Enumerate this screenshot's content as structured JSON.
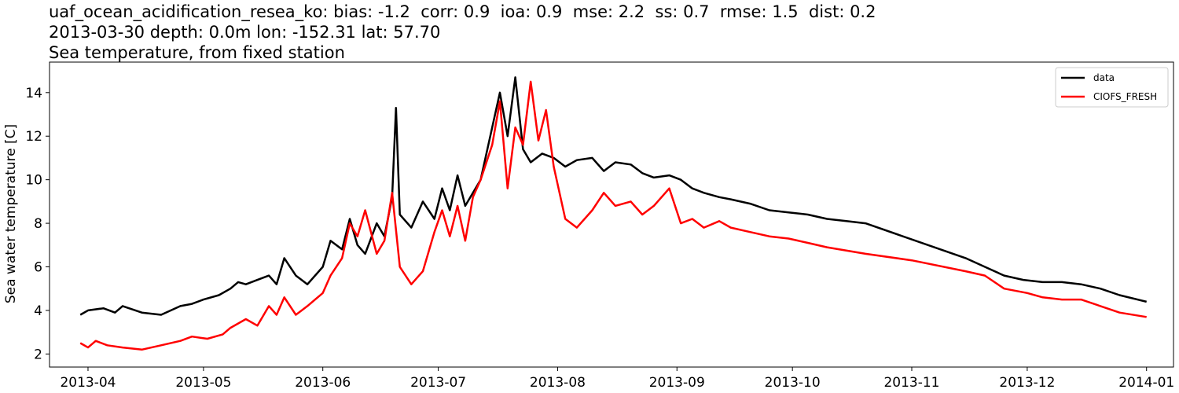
{
  "title_lines": [
    "uaf_ocean_acidification_resea_ko: bias: -1.2  corr: 0.9  ioa: 0.9  mse: 2.2  ss: 0.7  rmse: 1.5  dist: 0.2",
    "2013-03-30 depth: 0.0m lon: -152.31 lat: 57.70",
    "Sea temperature, from fixed station"
  ],
  "chart_data": {
    "type": "line",
    "title": "uaf_ocean_acidification_resea_ko: bias: -1.2  corr: 0.9  ioa: 0.9  mse: 2.2  ss: 0.7  rmse: 1.5  dist: 0.2 / 2013-03-30 depth: 0.0m lon: -152.31 lat: 57.70 / Sea temperature, from fixed station",
    "xlabel": "",
    "ylabel": "Sea water temperature [C]",
    "xlim": [
      "2013-03-22",
      "2014-01-08"
    ],
    "ylim": [
      1.4,
      15.4
    ],
    "x_ticks": [
      "2013-04",
      "2013-05",
      "2013-06",
      "2013-07",
      "2013-08",
      "2013-09",
      "2013-10",
      "2013-11",
      "2013-12",
      "2014-01"
    ],
    "x_tick_dates": [
      "2013-04-01",
      "2013-05-01",
      "2013-06-01",
      "2013-07-01",
      "2013-08-01",
      "2013-09-01",
      "2013-10-01",
      "2013-11-01",
      "2013-12-01",
      "2014-01-01"
    ],
    "y_ticks": [
      2,
      4,
      6,
      8,
      10,
      12,
      14
    ],
    "y_tick_labels": [
      "2",
      "4",
      "6",
      "8",
      "10",
      "12",
      "14"
    ],
    "grid": false,
    "legend": "top-right",
    "series": [
      {
        "name": "data",
        "color": "#000000",
        "x": [
          "2013-03-30",
          "2013-04-01",
          "2013-04-05",
          "2013-04-08",
          "2013-04-10",
          "2013-04-15",
          "2013-04-20",
          "2013-04-25",
          "2013-04-28",
          "2013-05-01",
          "2013-05-05",
          "2013-05-08",
          "2013-05-10",
          "2013-05-12",
          "2013-05-15",
          "2013-05-18",
          "2013-05-20",
          "2013-05-22",
          "2013-05-25",
          "2013-05-28",
          "2013-06-01",
          "2013-06-03",
          "2013-06-06",
          "2013-06-08",
          "2013-06-10",
          "2013-06-12",
          "2013-06-15",
          "2013-06-17",
          "2013-06-19",
          "2013-06-20",
          "2013-06-21",
          "2013-06-24",
          "2013-06-27",
          "2013-06-30",
          "2013-07-02",
          "2013-07-04",
          "2013-07-06",
          "2013-07-08",
          "2013-07-10",
          "2013-07-12",
          "2013-07-15",
          "2013-07-17",
          "2013-07-19",
          "2013-07-21",
          "2013-07-23",
          "2013-07-25",
          "2013-07-28",
          "2013-07-31",
          "2013-08-03",
          "2013-08-06",
          "2013-08-10",
          "2013-08-13",
          "2013-08-16",
          "2013-08-20",
          "2013-08-23",
          "2013-08-26",
          "2013-08-30",
          "2013-09-02",
          "2013-09-05",
          "2013-09-08",
          "2013-09-12",
          "2013-09-15",
          "2013-09-20",
          "2013-09-25",
          "2013-09-30",
          "2013-10-05",
          "2013-10-10",
          "2013-10-15",
          "2013-10-20",
          "2013-11-15",
          "2013-11-20",
          "2013-11-25",
          "2013-11-30",
          "2013-12-05",
          "2013-12-10",
          "2013-12-15",
          "2013-12-20",
          "2013-12-25",
          "2014-01-01"
        ],
        "y": [
          3.8,
          4.0,
          4.1,
          3.9,
          4.2,
          3.9,
          3.8,
          4.2,
          4.3,
          4.5,
          4.7,
          5.0,
          5.3,
          5.2,
          5.4,
          5.6,
          5.2,
          6.4,
          5.6,
          5.2,
          6.0,
          7.2,
          6.8,
          8.2,
          7.0,
          6.6,
          8.0,
          7.4,
          9.2,
          13.3,
          8.4,
          7.8,
          9.0,
          8.2,
          9.6,
          8.6,
          10.2,
          8.8,
          9.4,
          10.0,
          12.4,
          14.0,
          12.0,
          14.7,
          11.4,
          10.8,
          11.2,
          11.0,
          10.6,
          10.9,
          11.0,
          10.4,
          10.8,
          10.7,
          10.3,
          10.1,
          10.2,
          10.0,
          9.6,
          9.4,
          9.2,
          9.1,
          8.9,
          8.6,
          8.5,
          8.4,
          8.2,
          8.1,
          8.0,
          6.4,
          6.0,
          5.6,
          5.4,
          5.3,
          5.3,
          5.2,
          5.0,
          4.7,
          4.4
        ]
      },
      {
        "name": "CIOFS_FRESH",
        "color": "#ff0000",
        "x": [
          "2013-03-30",
          "2013-04-01",
          "2013-04-03",
          "2013-04-06",
          "2013-04-10",
          "2013-04-15",
          "2013-04-20",
          "2013-04-25",
          "2013-04-28",
          "2013-05-02",
          "2013-05-06",
          "2013-05-08",
          "2013-05-12",
          "2013-05-15",
          "2013-05-18",
          "2013-05-20",
          "2013-05-22",
          "2013-05-25",
          "2013-05-28",
          "2013-06-01",
          "2013-06-03",
          "2013-06-06",
          "2013-06-08",
          "2013-06-10",
          "2013-06-12",
          "2013-06-15",
          "2013-06-17",
          "2013-06-19",
          "2013-06-21",
          "2013-06-24",
          "2013-06-27",
          "2013-06-30",
          "2013-07-02",
          "2013-07-04",
          "2013-07-06",
          "2013-07-08",
          "2013-07-10",
          "2013-07-12",
          "2013-07-15",
          "2013-07-17",
          "2013-07-19",
          "2013-07-21",
          "2013-07-23",
          "2013-07-25",
          "2013-07-27",
          "2013-07-29",
          "2013-07-31",
          "2013-08-03",
          "2013-08-06",
          "2013-08-10",
          "2013-08-13",
          "2013-08-16",
          "2013-08-20",
          "2013-08-23",
          "2013-08-26",
          "2013-08-30",
          "2013-09-02",
          "2013-09-05",
          "2013-09-08",
          "2013-09-12",
          "2013-09-15",
          "2013-09-20",
          "2013-09-25",
          "2013-09-30",
          "2013-10-05",
          "2013-10-10",
          "2013-10-20",
          "2013-11-01",
          "2013-11-15",
          "2013-11-20",
          "2013-11-25",
          "2013-12-01",
          "2013-12-05",
          "2013-12-10",
          "2013-12-15",
          "2013-12-20",
          "2013-12-25",
          "2014-01-01"
        ],
        "y": [
          2.5,
          2.3,
          2.6,
          2.4,
          2.3,
          2.2,
          2.4,
          2.6,
          2.8,
          2.7,
          2.9,
          3.2,
          3.6,
          3.3,
          4.2,
          3.8,
          4.6,
          3.8,
          4.2,
          4.8,
          5.6,
          6.4,
          8.0,
          7.4,
          8.6,
          6.6,
          7.2,
          9.4,
          6.0,
          5.2,
          5.8,
          7.6,
          8.6,
          7.4,
          8.8,
          7.2,
          9.2,
          10.0,
          11.6,
          13.6,
          9.6,
          12.4,
          11.6,
          14.5,
          11.8,
          13.2,
          10.6,
          8.2,
          7.8,
          8.6,
          9.4,
          8.8,
          9.0,
          8.4,
          8.8,
          9.6,
          8.0,
          8.2,
          7.8,
          8.1,
          7.8,
          7.6,
          7.4,
          7.3,
          7.1,
          6.9,
          6.6,
          6.3,
          5.8,
          5.6,
          5.0,
          4.8,
          4.6,
          4.5,
          4.5,
          4.2,
          3.9,
          3.7
        ]
      }
    ]
  }
}
